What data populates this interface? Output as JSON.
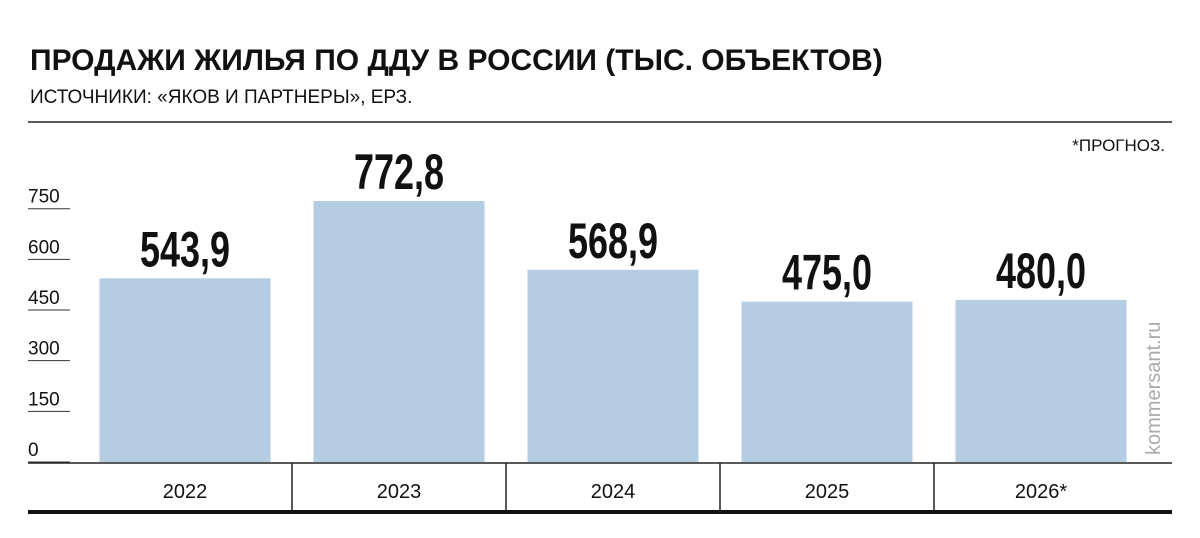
{
  "chart_data": {
    "type": "bar",
    "title": "ПРОДАЖИ ЖИЛЬЯ ПО ДДУ В РОССИИ (ТЫС. ОБЪЕКТОВ)",
    "subtitle": "ИСТОЧНИКИ: «ЯКОВ И ПАРТНЕРЫ», ЕРЗ.",
    "note": "*ПРОГНОЗ.",
    "watermark": "kommersant.ru",
    "categories": [
      "2022",
      "2023",
      "2024",
      "2025",
      "2026*"
    ],
    "values": [
      543.9,
      772.8,
      568.9,
      475.0,
      480.0
    ],
    "value_labels": [
      "543,9",
      "772,8",
      "568,9",
      "475,0",
      "480,0"
    ],
    "color": "#b4cde3",
    "ylim": [
      0,
      772.8
    ],
    "yticks": [
      0,
      150,
      300,
      450,
      600,
      750
    ]
  }
}
